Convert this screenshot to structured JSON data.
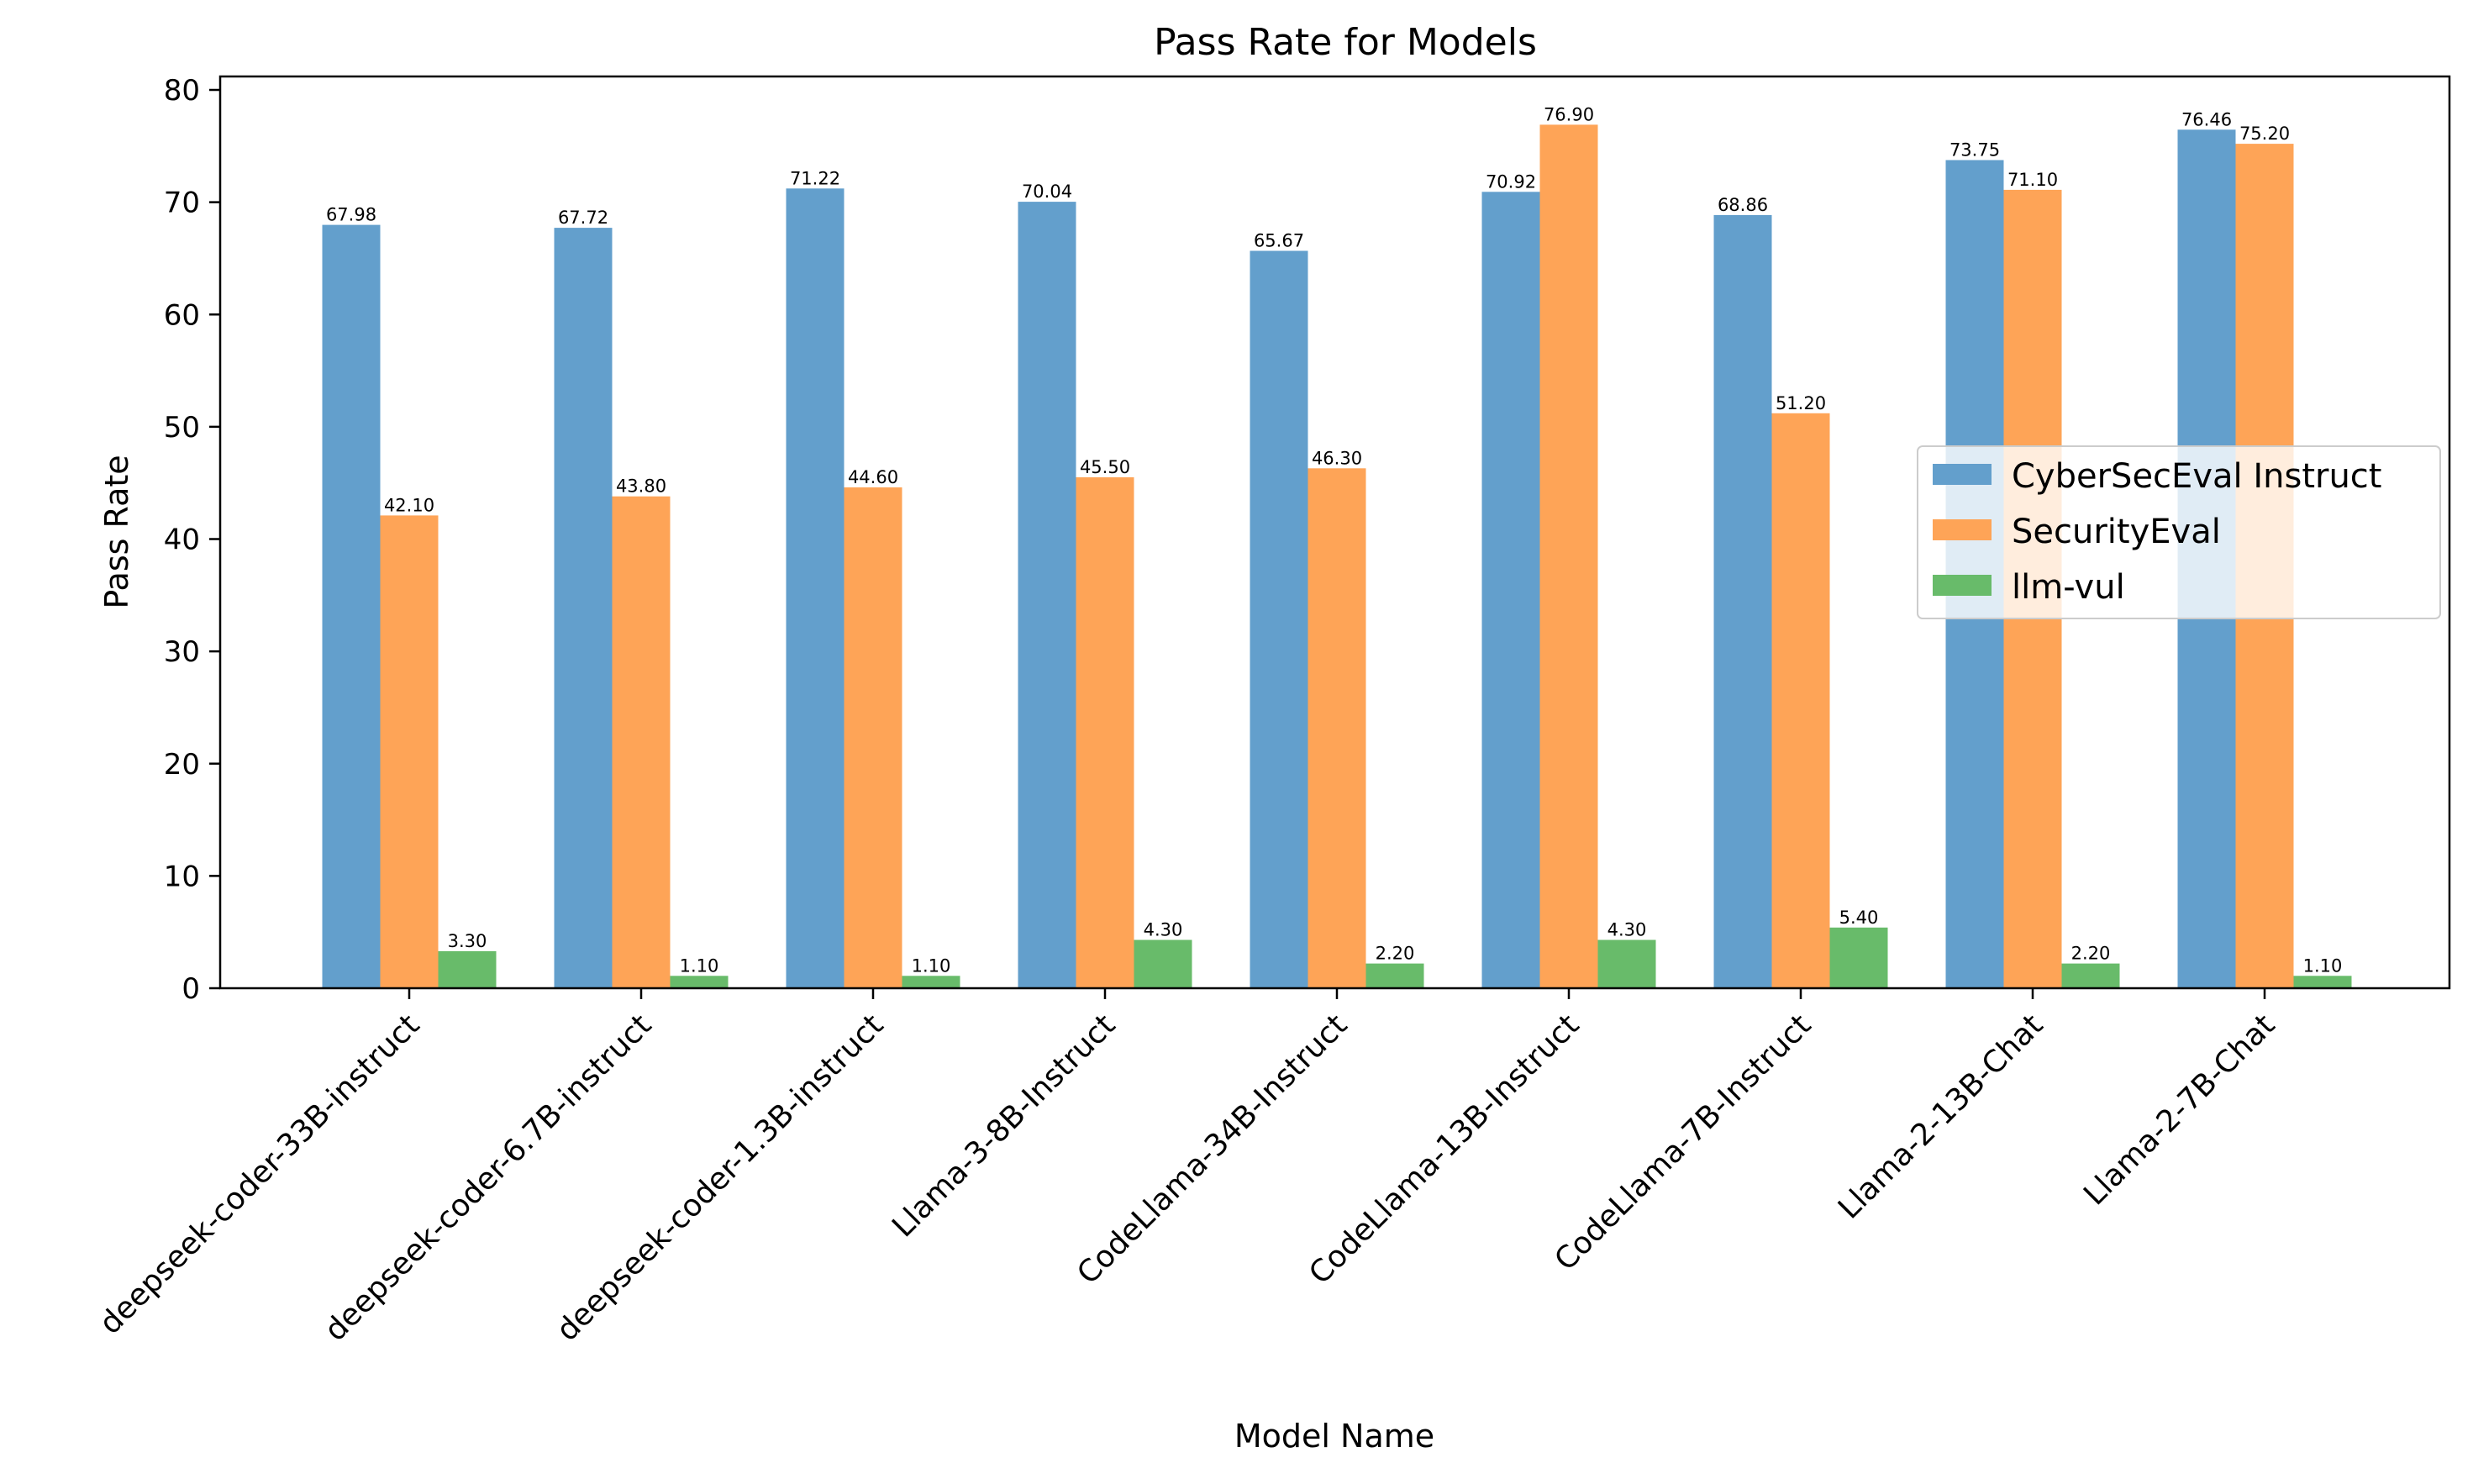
{
  "chart_data": {
    "type": "bar",
    "title": "Pass Rate for Models",
    "xlabel": "Model Name",
    "ylabel": "Pass Rate",
    "ylim": [
      0,
      80
    ],
    "yticks": [
      0,
      10,
      20,
      30,
      40,
      50,
      60,
      70,
      80
    ],
    "grid": false,
    "legend_position": "center-right",
    "categories": [
      "deepseek-coder-33B-instruct",
      "deepseek-coder-6.7B-instruct",
      "deepseek-coder-1.3B-instruct",
      "Llama-3-8B-Instruct",
      "CodeLlama-34B-Instruct",
      "CodeLlama-13B-Instruct",
      "CodeLlama-7B-Instruct",
      "Llama-2-13B-Chat",
      "Llama-2-7B-Chat"
    ],
    "series": [
      {
        "name": "CyberSecEval Instruct",
        "color": "#639fcc",
        "values": [
          67.98,
          67.72,
          71.22,
          70.04,
          65.67,
          70.92,
          68.86,
          73.75,
          76.46
        ],
        "labels": [
          "67.98",
          "67.72",
          "71.22",
          "70.04",
          "65.67",
          "70.92",
          "68.86",
          "73.75",
          "76.46"
        ]
      },
      {
        "name": "SecurityEval",
        "color": "#fea457",
        "values": [
          42.1,
          43.8,
          44.6,
          45.5,
          46.3,
          76.9,
          51.2,
          71.1,
          75.2
        ],
        "labels": [
          "42.10",
          "43.80",
          "44.60",
          "45.50",
          "46.30",
          "76.90",
          "51.20",
          "71.10",
          "75.20"
        ]
      },
      {
        "name": "llm-vul",
        "color": "#68bb6a",
        "values": [
          3.3,
          1.1,
          1.1,
          4.3,
          2.2,
          4.3,
          5.4,
          2.2,
          1.1
        ],
        "labels": [
          "3.30",
          "1.10",
          "1.10",
          "4.30",
          "2.20",
          "4.30",
          "5.40",
          "2.20",
          "1.10"
        ]
      }
    ]
  }
}
